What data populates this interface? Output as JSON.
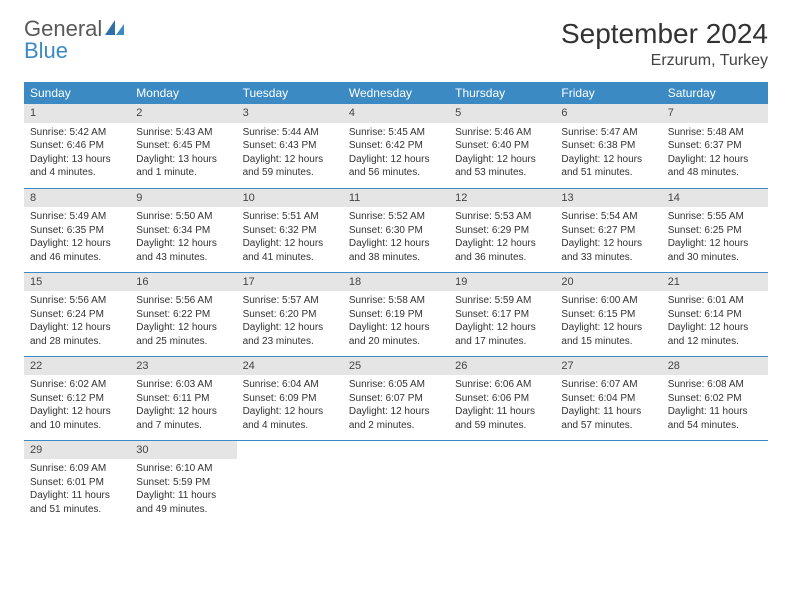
{
  "logo": {
    "word1": "General",
    "word2": "Blue"
  },
  "title": "September 2024",
  "location": "Erzurum, Turkey",
  "colors": {
    "header_bg": "#3b8ac4",
    "header_text": "#ffffff",
    "daynum_bg": "#e5e5e5",
    "row_divider": "#3b8ac4",
    "page_bg": "#ffffff",
    "logo_gray": "#5a5a5a",
    "logo_blue": "#3b8ac4"
  },
  "weekdays": [
    "Sunday",
    "Monday",
    "Tuesday",
    "Wednesday",
    "Thursday",
    "Friday",
    "Saturday"
  ],
  "weeks": [
    [
      {
        "n": "1",
        "sr": "Sunrise: 5:42 AM",
        "ss": "Sunset: 6:46 PM",
        "dl": "Daylight: 13 hours and 4 minutes."
      },
      {
        "n": "2",
        "sr": "Sunrise: 5:43 AM",
        "ss": "Sunset: 6:45 PM",
        "dl": "Daylight: 13 hours and 1 minute."
      },
      {
        "n": "3",
        "sr": "Sunrise: 5:44 AM",
        "ss": "Sunset: 6:43 PM",
        "dl": "Daylight: 12 hours and 59 minutes."
      },
      {
        "n": "4",
        "sr": "Sunrise: 5:45 AM",
        "ss": "Sunset: 6:42 PM",
        "dl": "Daylight: 12 hours and 56 minutes."
      },
      {
        "n": "5",
        "sr": "Sunrise: 5:46 AM",
        "ss": "Sunset: 6:40 PM",
        "dl": "Daylight: 12 hours and 53 minutes."
      },
      {
        "n": "6",
        "sr": "Sunrise: 5:47 AM",
        "ss": "Sunset: 6:38 PM",
        "dl": "Daylight: 12 hours and 51 minutes."
      },
      {
        "n": "7",
        "sr": "Sunrise: 5:48 AM",
        "ss": "Sunset: 6:37 PM",
        "dl": "Daylight: 12 hours and 48 minutes."
      }
    ],
    [
      {
        "n": "8",
        "sr": "Sunrise: 5:49 AM",
        "ss": "Sunset: 6:35 PM",
        "dl": "Daylight: 12 hours and 46 minutes."
      },
      {
        "n": "9",
        "sr": "Sunrise: 5:50 AM",
        "ss": "Sunset: 6:34 PM",
        "dl": "Daylight: 12 hours and 43 minutes."
      },
      {
        "n": "10",
        "sr": "Sunrise: 5:51 AM",
        "ss": "Sunset: 6:32 PM",
        "dl": "Daylight: 12 hours and 41 minutes."
      },
      {
        "n": "11",
        "sr": "Sunrise: 5:52 AM",
        "ss": "Sunset: 6:30 PM",
        "dl": "Daylight: 12 hours and 38 minutes."
      },
      {
        "n": "12",
        "sr": "Sunrise: 5:53 AM",
        "ss": "Sunset: 6:29 PM",
        "dl": "Daylight: 12 hours and 36 minutes."
      },
      {
        "n": "13",
        "sr": "Sunrise: 5:54 AM",
        "ss": "Sunset: 6:27 PM",
        "dl": "Daylight: 12 hours and 33 minutes."
      },
      {
        "n": "14",
        "sr": "Sunrise: 5:55 AM",
        "ss": "Sunset: 6:25 PM",
        "dl": "Daylight: 12 hours and 30 minutes."
      }
    ],
    [
      {
        "n": "15",
        "sr": "Sunrise: 5:56 AM",
        "ss": "Sunset: 6:24 PM",
        "dl": "Daylight: 12 hours and 28 minutes."
      },
      {
        "n": "16",
        "sr": "Sunrise: 5:56 AM",
        "ss": "Sunset: 6:22 PM",
        "dl": "Daylight: 12 hours and 25 minutes."
      },
      {
        "n": "17",
        "sr": "Sunrise: 5:57 AM",
        "ss": "Sunset: 6:20 PM",
        "dl": "Daylight: 12 hours and 23 minutes."
      },
      {
        "n": "18",
        "sr": "Sunrise: 5:58 AM",
        "ss": "Sunset: 6:19 PM",
        "dl": "Daylight: 12 hours and 20 minutes."
      },
      {
        "n": "19",
        "sr": "Sunrise: 5:59 AM",
        "ss": "Sunset: 6:17 PM",
        "dl": "Daylight: 12 hours and 17 minutes."
      },
      {
        "n": "20",
        "sr": "Sunrise: 6:00 AM",
        "ss": "Sunset: 6:15 PM",
        "dl": "Daylight: 12 hours and 15 minutes."
      },
      {
        "n": "21",
        "sr": "Sunrise: 6:01 AM",
        "ss": "Sunset: 6:14 PM",
        "dl": "Daylight: 12 hours and 12 minutes."
      }
    ],
    [
      {
        "n": "22",
        "sr": "Sunrise: 6:02 AM",
        "ss": "Sunset: 6:12 PM",
        "dl": "Daylight: 12 hours and 10 minutes."
      },
      {
        "n": "23",
        "sr": "Sunrise: 6:03 AM",
        "ss": "Sunset: 6:11 PM",
        "dl": "Daylight: 12 hours and 7 minutes."
      },
      {
        "n": "24",
        "sr": "Sunrise: 6:04 AM",
        "ss": "Sunset: 6:09 PM",
        "dl": "Daylight: 12 hours and 4 minutes."
      },
      {
        "n": "25",
        "sr": "Sunrise: 6:05 AM",
        "ss": "Sunset: 6:07 PM",
        "dl": "Daylight: 12 hours and 2 minutes."
      },
      {
        "n": "26",
        "sr": "Sunrise: 6:06 AM",
        "ss": "Sunset: 6:06 PM",
        "dl": "Daylight: 11 hours and 59 minutes."
      },
      {
        "n": "27",
        "sr": "Sunrise: 6:07 AM",
        "ss": "Sunset: 6:04 PM",
        "dl": "Daylight: 11 hours and 57 minutes."
      },
      {
        "n": "28",
        "sr": "Sunrise: 6:08 AM",
        "ss": "Sunset: 6:02 PM",
        "dl": "Daylight: 11 hours and 54 minutes."
      }
    ],
    [
      {
        "n": "29",
        "sr": "Sunrise: 6:09 AM",
        "ss": "Sunset: 6:01 PM",
        "dl": "Daylight: 11 hours and 51 minutes."
      },
      {
        "n": "30",
        "sr": "Sunrise: 6:10 AM",
        "ss": "Sunset: 5:59 PM",
        "dl": "Daylight: 11 hours and 49 minutes."
      },
      null,
      null,
      null,
      null,
      null
    ]
  ]
}
